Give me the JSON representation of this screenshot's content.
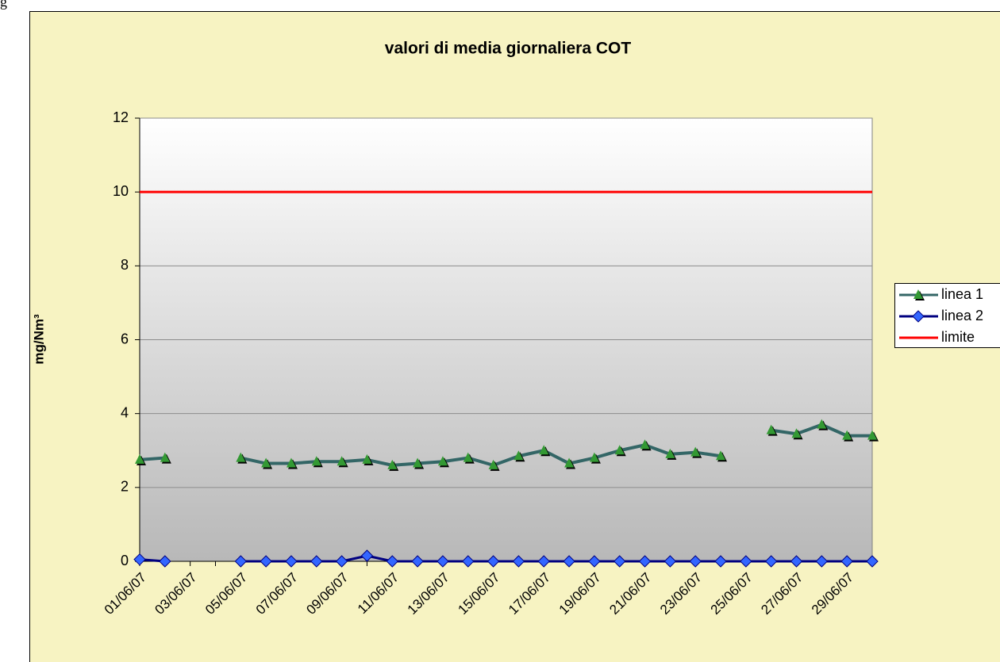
{
  "page_fragment": "g",
  "chart_data": {
    "type": "line",
    "title": "valori di media giornaliera  COT",
    "y_label": "mg/Nm³",
    "categories": [
      "01/06/07",
      null,
      "03/06/07",
      null,
      "05/06/07",
      null,
      "07/06/07",
      null,
      "09/06/07",
      null,
      "11/06/07",
      null,
      "13/06/07",
      null,
      "15/06/07",
      null,
      "17/06/07",
      null,
      "19/06/07",
      null,
      "21/06/07",
      null,
      "23/06/07",
      null,
      "25/06/07",
      null,
      "27/06/07",
      null,
      "29/06/07",
      null
    ],
    "series": [
      {
        "name": "linea 1",
        "color": "#336666",
        "marker": "triangle",
        "marker_color": "#339933",
        "values": [
          2.75,
          2.8,
          null,
          null,
          2.8,
          2.65,
          2.65,
          2.7,
          2.7,
          2.75,
          2.6,
          2.65,
          2.7,
          2.8,
          2.6,
          2.85,
          3.0,
          2.65,
          2.8,
          3.0,
          3.15,
          2.9,
          2.95,
          2.85,
          null,
          3.55,
          3.45,
          3.7,
          3.4,
          3.4
        ]
      },
      {
        "name": "linea 2",
        "color": "#000080",
        "marker": "diamond",
        "marker_color": "#3366ff",
        "values": [
          0.05,
          0,
          null,
          null,
          0,
          0,
          0,
          0,
          0,
          0.15,
          0,
          0,
          0,
          0,
          0,
          0,
          0,
          0,
          0,
          0,
          0,
          0,
          0,
          0,
          0,
          0,
          0,
          0,
          0,
          0
        ]
      },
      {
        "name": "limite",
        "color": "#ff0000",
        "marker": "none",
        "values": [
          10,
          10,
          10,
          10,
          10,
          10,
          10,
          10,
          10,
          10,
          10,
          10,
          10,
          10,
          10,
          10,
          10,
          10,
          10,
          10,
          10,
          10,
          10,
          10,
          10,
          10,
          10,
          10,
          10,
          10
        ]
      }
    ],
    "ylim": [
      0,
      12
    ],
    "yticks": [
      0,
      2,
      4,
      6,
      8,
      10,
      12
    ],
    "grid": true,
    "legend": "right"
  }
}
